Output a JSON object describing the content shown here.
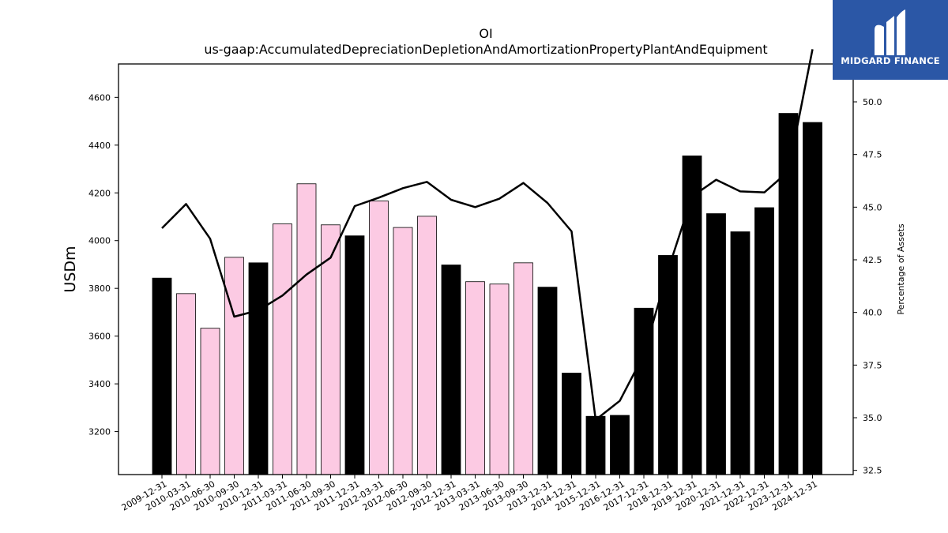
{
  "chart_data": {
    "type": "bar",
    "title": "OI",
    "subtitle": "us-gaap:AccumulatedDepreciationDepletionAndAmortizationPropertyPlantAndEquipment",
    "ylabel": "USDm",
    "ylabel_right": "Percentage of Assets",
    "categories": [
      "2009-12-31",
      "2010-03-31",
      "2010-06-30",
      "2010-09-30",
      "2010-12-31",
      "2011-03-31",
      "2011-06-30",
      "2011-09-30",
      "2011-12-31",
      "2012-03-31",
      "2012-06-30",
      "2012-09-30",
      "2012-12-31",
      "2013-03-31",
      "2013-06-30",
      "2013-09-30",
      "2013-12-31",
      "2014-12-31",
      "2015-12-31",
      "2016-12-31",
      "2017-12-31",
      "2018-12-31",
      "2019-12-31",
      "2020-12-31",
      "2021-12-31",
      "2022-12-31",
      "2023-12-31",
      "2024-12-31"
    ],
    "series": [
      {
        "kind": "bar",
        "values": [
          3843,
          3778,
          3633,
          3930,
          3907,
          4070,
          4238,
          4066,
          4020,
          4166,
          4055,
          4102,
          3898,
          3828,
          3818,
          3907,
          3805,
          3445,
          3264,
          3268,
          3717,
          3938,
          4355,
          4113,
          4037,
          4138,
          4533,
          4495
        ],
        "annual_flags": [
          1,
          0,
          0,
          0,
          1,
          0,
          0,
          0,
          1,
          0,
          0,
          0,
          1,
          0,
          0,
          0,
          1,
          1,
          1,
          1,
          1,
          1,
          1,
          1,
          1,
          1,
          1,
          1
        ]
      },
      {
        "kind": "line",
        "axis": "right",
        "values": [
          44.0,
          45.15,
          43.5,
          39.8,
          40.1,
          40.8,
          41.8,
          42.6,
          45.05,
          45.45,
          45.9,
          46.2,
          45.35,
          45.0,
          45.4,
          46.15,
          45.2,
          43.85,
          34.9,
          35.8,
          38.0,
          42.0,
          45.5,
          46.3,
          45.75,
          45.7,
          46.7,
          52.5
        ]
      }
    ],
    "ylim": [
      3020,
      4740
    ],
    "ylim_right": [
      32.3,
      51.8
    ],
    "yticks": [
      3200,
      3400,
      3600,
      3800,
      4000,
      4200,
      4400,
      4600
    ],
    "yticks_right": [
      "32.5",
      "35.0",
      "37.5",
      "40.0",
      "42.5",
      "45.0",
      "47.5",
      "50.0"
    ],
    "colors": {
      "annual_bar": "#000000",
      "quarterly_bar": "#fccae3",
      "line": "#000000"
    },
    "legend": "none",
    "grid": false
  },
  "logo": {
    "text": "MIDGARD FINANCE",
    "bg_color": "#2b57a6"
  }
}
